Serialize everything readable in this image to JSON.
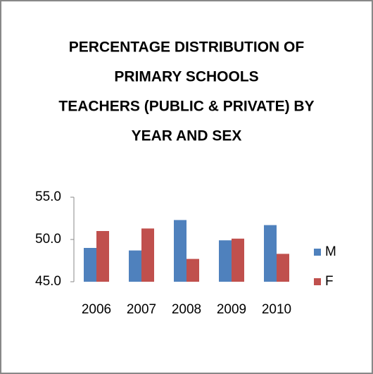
{
  "chart_data": {
    "type": "bar",
    "title": [
      "PERCENTAGE DISTRIBUTION OF",
      "PRIMARY SCHOOLS",
      "TEACHERS (PUBLIC & PRIVATE) BY",
      "YEAR AND SEX"
    ],
    "categories": [
      "2006",
      "2007",
      "2008",
      "2009",
      "2010"
    ],
    "series": [
      {
        "name": "M",
        "color": "#4f81bd",
        "values": [
          49.0,
          48.7,
          52.3,
          49.9,
          51.7
        ]
      },
      {
        "name": "F",
        "color": "#c0504d",
        "values": [
          51.0,
          51.3,
          47.7,
          50.1,
          48.3
        ]
      }
    ],
    "ylim": [
      45,
      55
    ],
    "yticks": [
      {
        "value": 45,
        "label": "45.0"
      },
      {
        "value": 50,
        "label": "50.0"
      },
      {
        "value": 55,
        "label": "55.0"
      }
    ],
    "grid": false,
    "legend": "right"
  }
}
